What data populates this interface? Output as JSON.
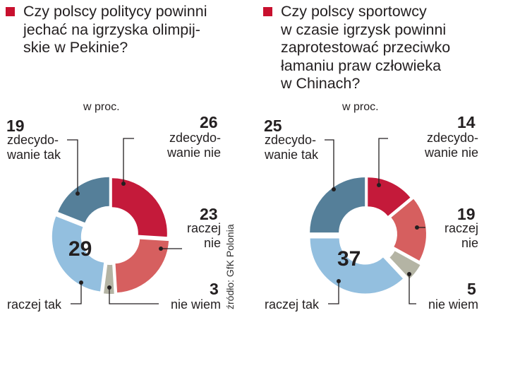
{
  "colors": {
    "accent": "#c8102e"
  },
  "source": "źródło: GfK Polonia",
  "chart_data": [
    {
      "type": "pie",
      "title": "Czy polscy politycy powinni\njechać na igrzyska olimpij-\nskie w Pekinie?",
      "unit": "w proc.",
      "slices": [
        {
          "label": "zdecydo-\nwanie nie",
          "value": 26,
          "color": "#c41a3a"
        },
        {
          "label": "raczej\nnie",
          "value": 23,
          "color": "#d65f5f"
        },
        {
          "label": "nie wiem",
          "value": 3,
          "color": "#b4b4a4"
        },
        {
          "label": "raczej tak",
          "value": 29,
          "color": "#93bfdf"
        },
        {
          "label": "zdecydo-\nwanie tak",
          "value": 19,
          "color": "#557f99"
        }
      ]
    },
    {
      "type": "pie",
      "title": "Czy polscy sportowcy\nw czasie igrzysk powinni\nzaprotestować przeciwko\nłamaniu praw człowieka\nw Chinach?",
      "unit": "w proc.",
      "slices": [
        {
          "label": "zdecydo-\nwanie nie",
          "value": 14,
          "color": "#c41a3a"
        },
        {
          "label": "raczej\nnie",
          "value": 19,
          "color": "#d65f5f"
        },
        {
          "label": "nie wiem",
          "value": 5,
          "color": "#b4b4a4"
        },
        {
          "label": "raczej tak",
          "value": 37,
          "color": "#93bfdf"
        },
        {
          "label": "zdecydo-\nwanie tak",
          "value": 25,
          "color": "#557f99"
        }
      ]
    }
  ]
}
